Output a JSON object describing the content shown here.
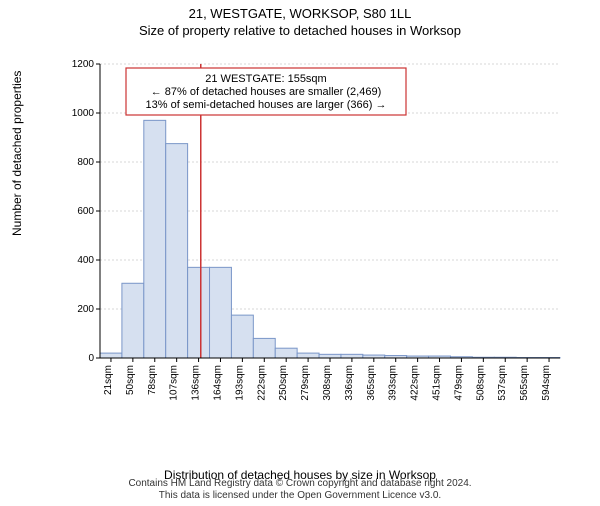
{
  "title": "21, WESTGATE, WORKSOP, S80 1LL",
  "subtitle": "Size of property relative to detached houses in Worksop",
  "ylabel": "Number of detached properties",
  "xlabel": "Distribution of detached houses by size in Worksop",
  "footer_line1": "Contains HM Land Registry data © Crown copyright and database right 2024.",
  "footer_line2": "This data is licensed under the Open Government Licence v3.0.",
  "chart": {
    "type": "histogram",
    "ylim": [
      0,
      1200
    ],
    "ytick_step": 200,
    "yticks": [
      0,
      200,
      400,
      600,
      800,
      1000,
      1200
    ],
    "xticks_labels": [
      "21sqm",
      "50sqm",
      "78sqm",
      "107sqm",
      "136sqm",
      "164sqm",
      "193sqm",
      "222sqm",
      "250sqm",
      "279sqm",
      "308sqm",
      "336sqm",
      "365sqm",
      "393sqm",
      "422sqm",
      "451sqm",
      "479sqm",
      "508sqm",
      "537sqm",
      "565sqm",
      "594sqm"
    ],
    "bar_fill": "#d6e0f0",
    "bar_stroke": "#7a96c8",
    "grid_color": "#b0b0b0",
    "background_color": "#ffffff",
    "bar_width": 1.0,
    "values": [
      20,
      305,
      970,
      875,
      370,
      370,
      175,
      80,
      40,
      20,
      15,
      15,
      12,
      10,
      8,
      8,
      5,
      3,
      3,
      2,
      2
    ],
    "marker": {
      "position_index": 4.6,
      "color": "#cc3333",
      "box_border": "#cc3333",
      "lines": [
        "21 WESTGATE: 155sqm",
        "← 87% of detached houses are smaller (2,469)",
        "13% of semi-detached houses are larger (366) →"
      ]
    }
  }
}
